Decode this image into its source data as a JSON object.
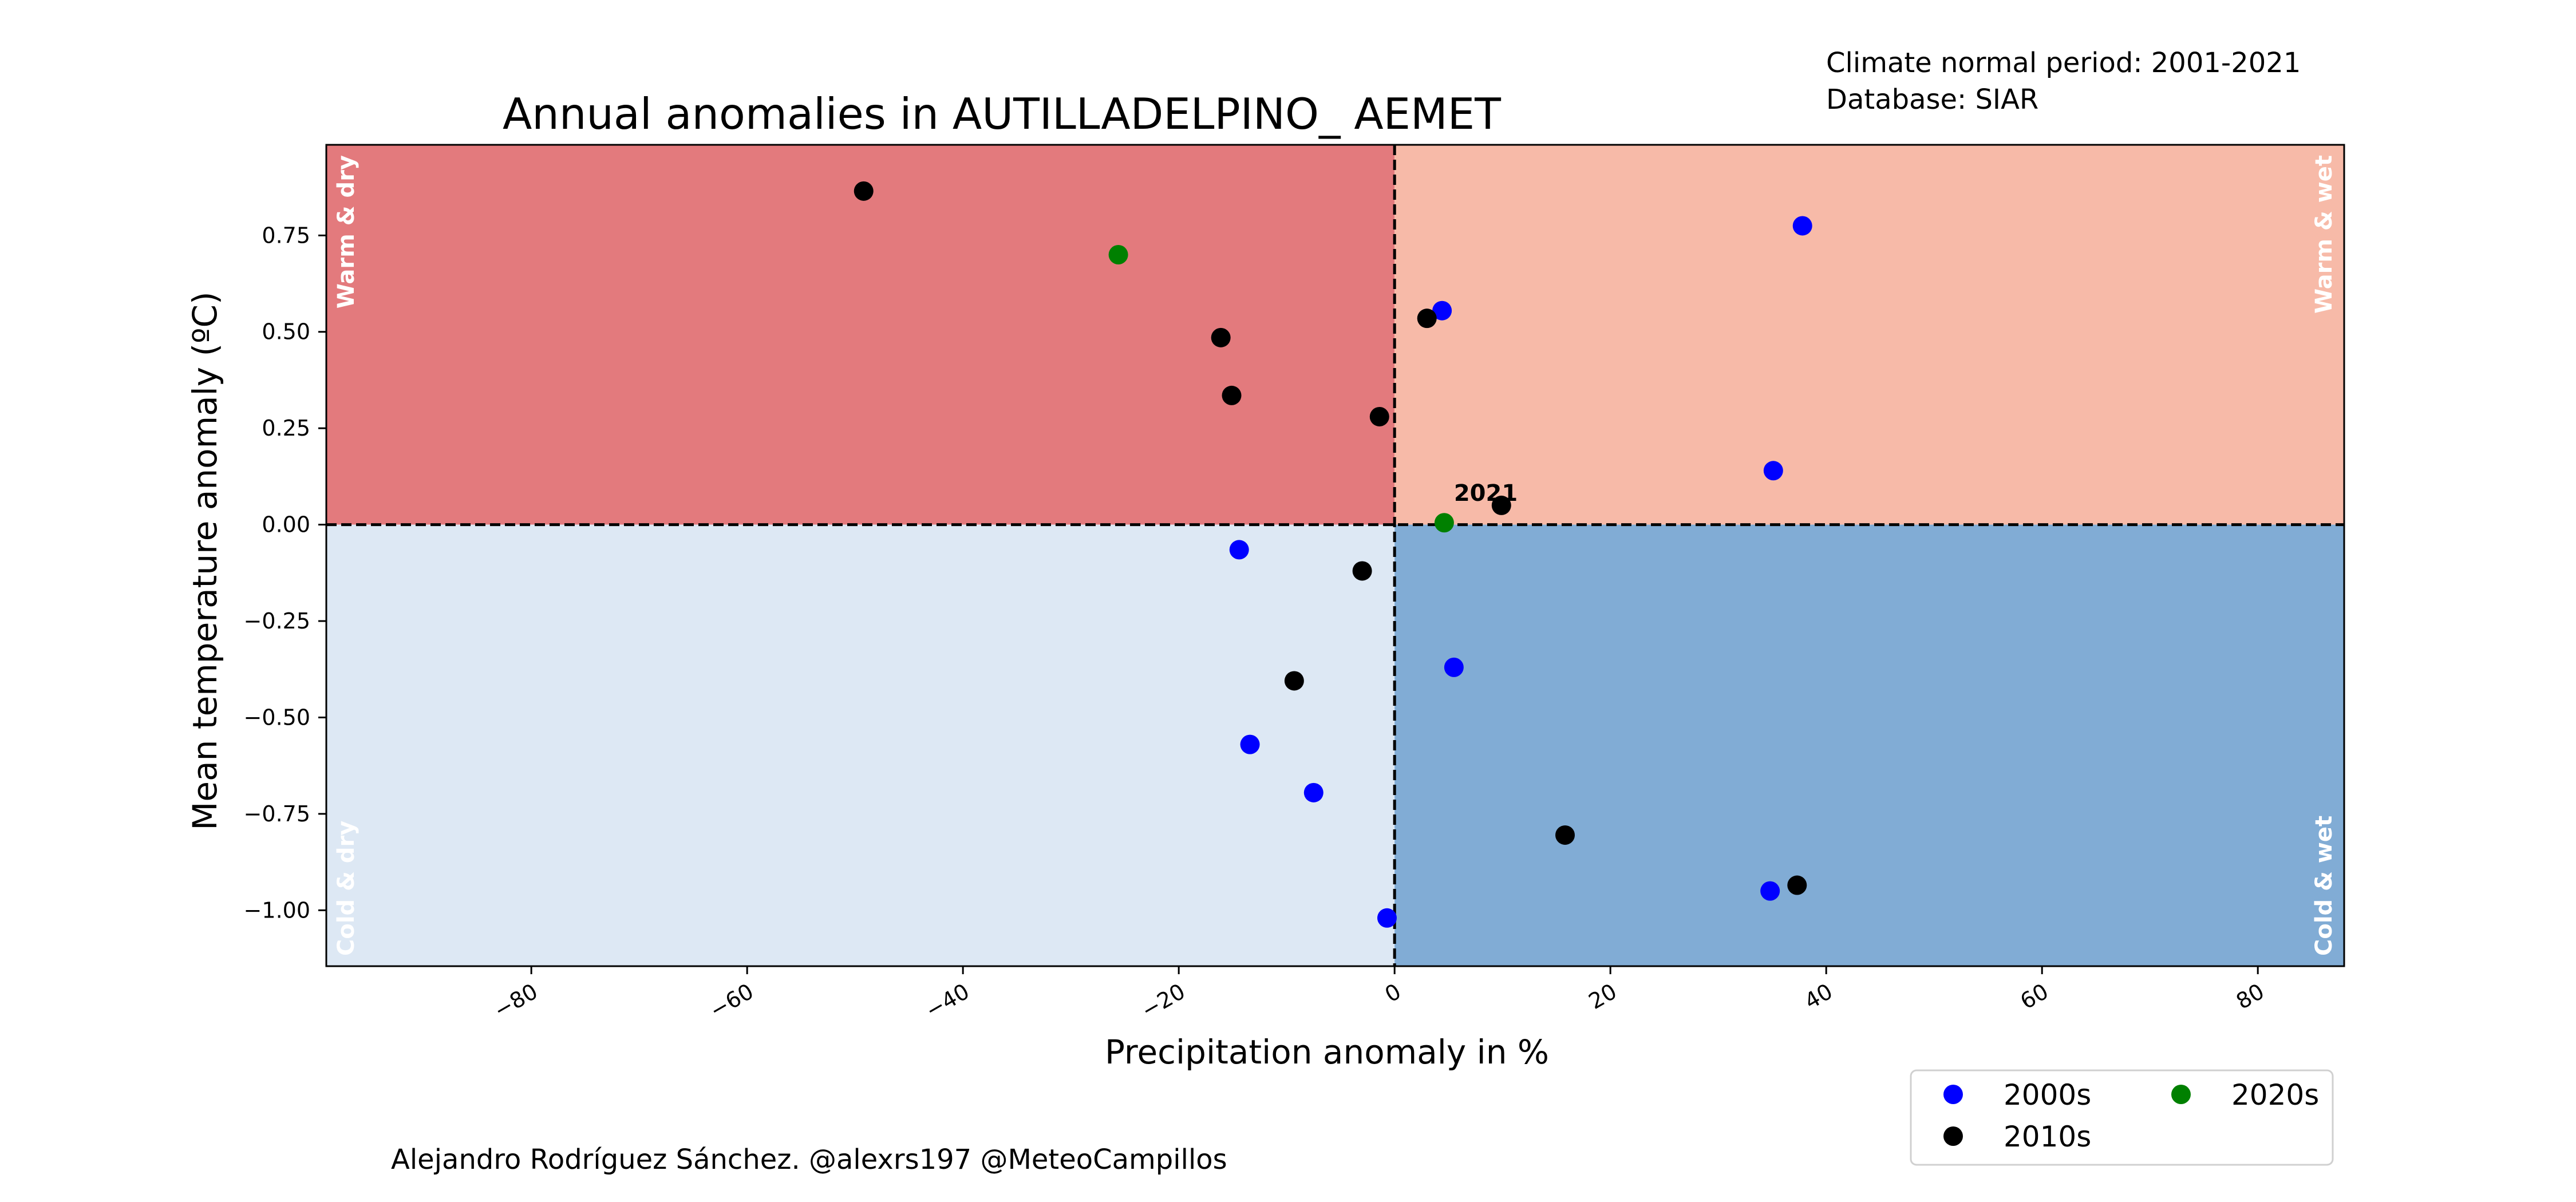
{
  "chart_data": {
    "type": "scatter",
    "title": "Annual anomalies in AUTILLADELPINO_ AEMET",
    "xlabel": "Precipitation anomaly in %",
    "ylabel": "Mean temperature anomaly (ºC)",
    "xlim": [
      -99,
      88
    ],
    "ylim": [
      -1.145,
      0.985
    ],
    "x_ticks": [
      -80,
      -60,
      -40,
      -20,
      0,
      20,
      40,
      60,
      80
    ],
    "x_tick_labels": [
      "−80",
      "−60",
      "−40",
      "−20",
      "0",
      "20",
      "40",
      "60",
      "80"
    ],
    "y_ticks": [
      0.75,
      0.5,
      0.25,
      0.0,
      -0.25,
      -0.5,
      -0.75,
      -1.0
    ],
    "y_tick_labels": [
      "0.75",
      "0.50",
      "0.25",
      "0.00",
      "−0.25",
      "−0.50",
      "−0.75",
      "−1.00"
    ],
    "grid": false,
    "legend_position": "bottom-right",
    "quadrants": {
      "warm_dry": {
        "label": "Warm & dry",
        "color": "#e37a7d"
      },
      "warm_wet": {
        "label": "Warm & wet",
        "color": "#f7baa8"
      },
      "cold_dry": {
        "label": "Cold & dry",
        "color": "#dde8f4"
      },
      "cold_wet": {
        "label": "Cold & wet",
        "color": "#81acd5"
      }
    },
    "series": [
      {
        "name": "2000s",
        "color": "#0000ff",
        "points": [
          {
            "x": 37.8,
            "y": 0.775
          },
          {
            "x": 4.4,
            "y": 0.555
          },
          {
            "x": 35.1,
            "y": 0.14
          },
          {
            "x": -14.4,
            "y": -0.065
          },
          {
            "x": 5.5,
            "y": -0.37
          },
          {
            "x": -13.4,
            "y": -0.57
          },
          {
            "x": -7.5,
            "y": -0.695
          },
          {
            "x": 34.8,
            "y": -0.95
          },
          {
            "x": -0.7,
            "y": -1.02
          }
        ]
      },
      {
        "name": "2010s",
        "color": "#000000",
        "points": [
          {
            "x": -49.2,
            "y": 0.865
          },
          {
            "x": -16.1,
            "y": 0.485
          },
          {
            "x": 3.0,
            "y": 0.535
          },
          {
            "x": -15.1,
            "y": 0.335
          },
          {
            "x": -1.4,
            "y": 0.28
          },
          {
            "x": 9.9,
            "y": 0.05
          },
          {
            "x": -3.0,
            "y": -0.12
          },
          {
            "x": -9.3,
            "y": -0.405
          },
          {
            "x": 15.8,
            "y": -0.805
          },
          {
            "x": 37.3,
            "y": -0.935
          }
        ]
      },
      {
        "name": "2020s",
        "color": "#008000",
        "points": [
          {
            "x": -25.6,
            "y": 0.7
          },
          {
            "x": 4.6,
            "y": 0.005
          }
        ]
      }
    ],
    "annotations": [
      {
        "text": "2021",
        "x": 5.5,
        "y": 0.05
      }
    ]
  },
  "notes": {
    "climate_period": "Climate normal period: 2001-2021",
    "database": "Database: SIAR",
    "credit": "Alejandro Rodríguez Sánchez. @alexrs197 @MeteoCampillos"
  }
}
